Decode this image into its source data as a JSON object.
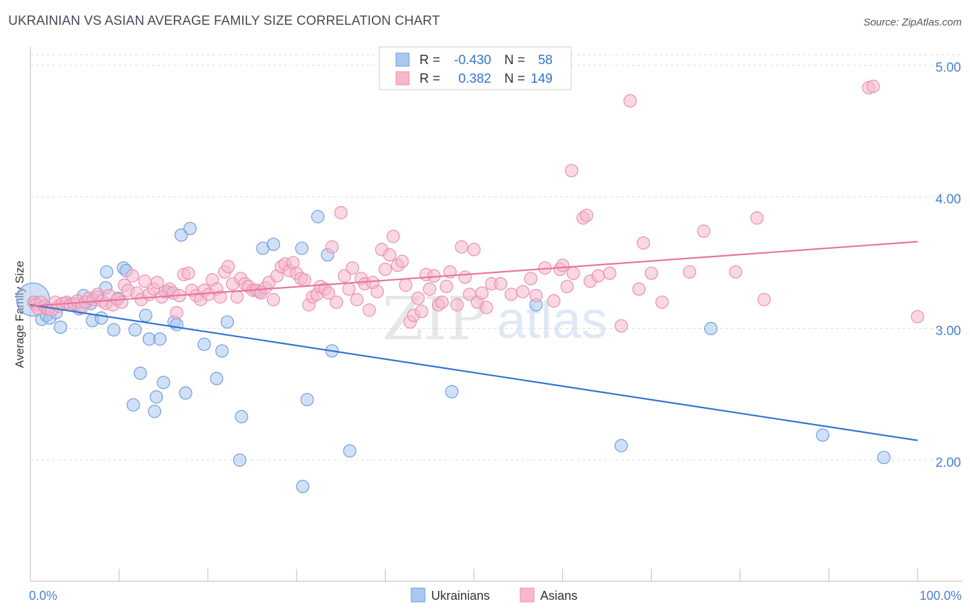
{
  "title": "UKRAINIAN VS ASIAN AVERAGE FAMILY SIZE CORRELATION CHART",
  "source": "Source: ZipAtlas.com",
  "watermark": {
    "zip": "ZIP",
    "atlas": "atlas"
  },
  "legend": {
    "rows": [
      {
        "series": "Ukrainians",
        "r_label": "R =",
        "r_value": "-0.430",
        "n_label": "N =",
        "n_value": "58"
      },
      {
        "series": "Asians",
        "r_label": "R =",
        "r_value": "0.382",
        "n_label": "N =",
        "n_value": "149"
      }
    ]
  },
  "colors": {
    "ukrainians_fill": "#a9c8f0",
    "ukrainians_stroke": "#6e9ddc",
    "ukrainians_line": "#2f74d0",
    "asians_fill": "#f6b8cc",
    "asians_stroke": "#ea8eac",
    "asians_line": "#e8739b",
    "tick_text": "#4a7fd4",
    "grid": "#dddddd"
  },
  "chart_data": {
    "type": "scatter",
    "title": "UKRAINIAN VS ASIAN AVERAGE FAMILY SIZE CORRELATION CHART",
    "xlabel": "",
    "ylabel": "Average Family Size",
    "xlim": [
      0,
      100
    ],
    "ylim": [
      1.08,
      5.14
    ],
    "x_tick_labels": [
      "0.0%",
      "100.0%"
    ],
    "y_ticks": [
      2.0,
      3.0,
      4.0,
      5.0
    ],
    "y_tick_labels": [
      "2.00",
      "3.00",
      "4.00",
      "5.00"
    ],
    "series": [
      {
        "name": "Ukrainians",
        "r": -0.43,
        "n": 58,
        "trend": {
          "x": [
            0,
            100
          ],
          "y": [
            3.18,
            2.15
          ]
        },
        "points": [
          [
            0.5,
            3.2
          ],
          [
            1.3,
            3.07
          ],
          [
            1.8,
            3.1
          ],
          [
            2.2,
            3.08
          ],
          [
            2.9,
            3.12
          ],
          [
            3.4,
            3.01
          ],
          [
            4.0,
            3.19
          ],
          [
            5.1,
            3.18
          ],
          [
            5.5,
            3.15
          ],
          [
            6.0,
            3.25
          ],
          [
            6.3,
            3.2
          ],
          [
            6.8,
            3.19
          ],
          [
            7.0,
            3.06
          ],
          [
            7.5,
            3.24
          ],
          [
            8.0,
            3.08
          ],
          [
            8.5,
            3.31
          ],
          [
            8.6,
            3.43
          ],
          [
            9.4,
            2.99
          ],
          [
            9.9,
            3.23
          ],
          [
            10.5,
            3.46
          ],
          [
            10.8,
            3.44
          ],
          [
            11.6,
            2.42
          ],
          [
            11.8,
            2.99
          ],
          [
            12.4,
            2.66
          ],
          [
            13.0,
            3.1
          ],
          [
            13.4,
            2.92
          ],
          [
            14.0,
            2.37
          ],
          [
            14.2,
            2.48
          ],
          [
            14.6,
            2.92
          ],
          [
            15.0,
            2.59
          ],
          [
            15.5,
            3.28
          ],
          [
            16.2,
            3.05
          ],
          [
            16.5,
            3.03
          ],
          [
            17.0,
            3.71
          ],
          [
            17.5,
            2.51
          ],
          [
            18.0,
            3.76
          ],
          [
            19.6,
            2.88
          ],
          [
            21.0,
            2.62
          ],
          [
            21.6,
            2.83
          ],
          [
            22.2,
            3.05
          ],
          [
            23.6,
            2.0
          ],
          [
            23.8,
            2.33
          ],
          [
            25.8,
            3.28
          ],
          [
            26.2,
            3.61
          ],
          [
            27.4,
            3.64
          ],
          [
            30.6,
            3.61
          ],
          [
            30.7,
            1.8
          ],
          [
            31.2,
            2.46
          ],
          [
            32.4,
            3.85
          ],
          [
            33.5,
            3.56
          ],
          [
            34.0,
            2.83
          ],
          [
            36.0,
            2.07
          ],
          [
            47.5,
            2.52
          ],
          [
            57.0,
            3.18
          ],
          [
            66.6,
            2.11
          ],
          [
            76.7,
            3.0
          ],
          [
            89.3,
            2.19
          ],
          [
            96.2,
            2.02
          ]
        ]
      },
      {
        "name": "Asians",
        "r": 0.382,
        "n": 149,
        "trend": {
          "x": [
            0,
            100
          ],
          "y": [
            3.17,
            3.66
          ]
        },
        "points": [
          [
            0.4,
            3.2
          ],
          [
            0.6,
            3.18
          ],
          [
            0.9,
            3.15
          ],
          [
            1.2,
            3.2
          ],
          [
            1.6,
            3.17
          ],
          [
            2.0,
            3.15
          ],
          [
            2.4,
            3.14
          ],
          [
            2.8,
            3.2
          ],
          [
            3.2,
            3.17
          ],
          [
            3.6,
            3.19
          ],
          [
            4.1,
            3.2
          ],
          [
            4.5,
            3.18
          ],
          [
            4.9,
            3.19
          ],
          [
            5.3,
            3.21
          ],
          [
            5.8,
            3.16
          ],
          [
            6.2,
            3.2
          ],
          [
            6.6,
            3.23
          ],
          [
            7.1,
            3.22
          ],
          [
            7.6,
            3.26
          ],
          [
            8.1,
            3.21
          ],
          [
            8.5,
            3.19
          ],
          [
            8.9,
            3.25
          ],
          [
            9.3,
            3.18
          ],
          [
            9.8,
            3.22
          ],
          [
            10.3,
            3.2
          ],
          [
            10.6,
            3.33
          ],
          [
            11.0,
            3.29
          ],
          [
            11.5,
            3.4
          ],
          [
            12.0,
            3.27
          ],
          [
            12.5,
            3.22
          ],
          [
            12.9,
            3.36
          ],
          [
            13.4,
            3.26
          ],
          [
            13.9,
            3.3
          ],
          [
            14.3,
            3.35
          ],
          [
            14.8,
            3.24
          ],
          [
            15.2,
            3.28
          ],
          [
            15.7,
            3.3
          ],
          [
            16.1,
            3.27
          ],
          [
            16.5,
            3.12
          ],
          [
            16.8,
            3.25
          ],
          [
            17.3,
            3.41
          ],
          [
            17.8,
            3.42
          ],
          [
            18.2,
            3.29
          ],
          [
            18.7,
            3.25
          ],
          [
            19.2,
            3.22
          ],
          [
            19.6,
            3.29
          ],
          [
            20.1,
            3.26
          ],
          [
            20.5,
            3.37
          ],
          [
            21.0,
            3.3
          ],
          [
            21.4,
            3.24
          ],
          [
            21.9,
            3.43
          ],
          [
            22.3,
            3.47
          ],
          [
            22.8,
            3.34
          ],
          [
            23.3,
            3.24
          ],
          [
            23.7,
            3.38
          ],
          [
            24.2,
            3.34
          ],
          [
            24.6,
            3.32
          ],
          [
            25.1,
            3.29
          ],
          [
            25.5,
            3.29
          ],
          [
            26.0,
            3.27
          ],
          [
            26.5,
            3.31
          ],
          [
            26.9,
            3.35
          ],
          [
            27.4,
            3.22
          ],
          [
            27.8,
            3.4
          ],
          [
            28.3,
            3.47
          ],
          [
            28.7,
            3.49
          ],
          [
            29.2,
            3.44
          ],
          [
            29.6,
            3.5
          ],
          [
            30.0,
            3.42
          ],
          [
            30.5,
            3.38
          ],
          [
            30.9,
            3.37
          ],
          [
            31.4,
            3.18
          ],
          [
            31.8,
            3.24
          ],
          [
            32.3,
            3.26
          ],
          [
            32.7,
            3.32
          ],
          [
            33.2,
            3.3
          ],
          [
            33.6,
            3.27
          ],
          [
            34.0,
            3.62
          ],
          [
            34.5,
            3.2
          ],
          [
            35.0,
            3.88
          ],
          [
            35.4,
            3.4
          ],
          [
            35.9,
            3.3
          ],
          [
            36.3,
            3.46
          ],
          [
            36.8,
            3.22
          ],
          [
            37.3,
            3.38
          ],
          [
            37.7,
            3.34
          ],
          [
            38.2,
            3.14
          ],
          [
            38.6,
            3.35
          ],
          [
            39.1,
            3.28
          ],
          [
            39.6,
            3.6
          ],
          [
            40.0,
            3.45
          ],
          [
            40.5,
            3.56
          ],
          [
            40.9,
            3.7
          ],
          [
            41.4,
            3.48
          ],
          [
            41.9,
            3.51
          ],
          [
            42.3,
            3.33
          ],
          [
            42.8,
            3.05
          ],
          [
            43.2,
            3.1
          ],
          [
            43.7,
            3.23
          ],
          [
            44.1,
            3.13
          ],
          [
            44.6,
            3.41
          ],
          [
            45.0,
            3.3
          ],
          [
            45.5,
            3.4
          ],
          [
            46.0,
            3.18
          ],
          [
            46.4,
            3.2
          ],
          [
            46.9,
            3.32
          ],
          [
            47.3,
            3.43
          ],
          [
            48.1,
            3.18
          ],
          [
            48.6,
            3.62
          ],
          [
            49.0,
            3.39
          ],
          [
            49.5,
            3.26
          ],
          [
            50.0,
            3.6
          ],
          [
            50.4,
            3.2
          ],
          [
            50.9,
            3.27
          ],
          [
            51.4,
            3.16
          ],
          [
            52.0,
            3.34
          ],
          [
            53.0,
            3.34
          ],
          [
            54.2,
            3.26
          ],
          [
            55.5,
            3.28
          ],
          [
            56.4,
            3.38
          ],
          [
            57.0,
            3.25
          ],
          [
            58.0,
            3.46
          ],
          [
            59.0,
            3.21
          ],
          [
            59.7,
            3.45
          ],
          [
            60.0,
            3.48
          ],
          [
            60.5,
            3.32
          ],
          [
            61.2,
            3.42
          ],
          [
            62.3,
            3.84
          ],
          [
            62.7,
            3.86
          ],
          [
            63.1,
            3.36
          ],
          [
            64.0,
            3.4
          ],
          [
            65.3,
            3.42
          ],
          [
            66.6,
            3.02
          ],
          [
            67.6,
            4.73
          ],
          [
            68.6,
            3.3
          ],
          [
            69.1,
            3.65
          ],
          [
            70.0,
            3.42
          ],
          [
            71.2,
            3.2
          ],
          [
            74.3,
            3.43
          ],
          [
            75.9,
            3.74
          ],
          [
            79.5,
            3.43
          ],
          [
            81.9,
            3.84
          ],
          [
            82.7,
            3.22
          ],
          [
            94.5,
            4.83
          ],
          [
            95.0,
            4.84
          ],
          [
            100.0,
            3.09
          ],
          [
            61.0,
            4.2
          ]
        ]
      }
    ]
  }
}
